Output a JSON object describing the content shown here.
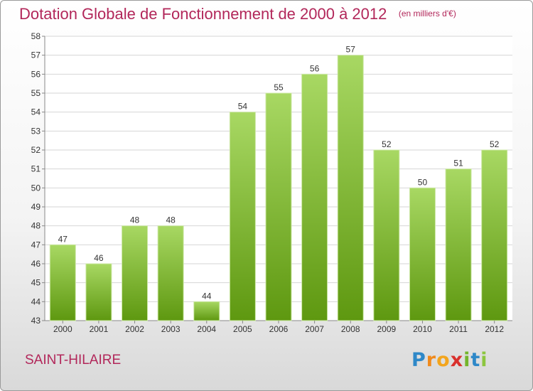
{
  "header": {
    "title": "Dotation Globale de Fonctionnement de 2000 à 2012",
    "subtitle": "(en milliers d'€)"
  },
  "commune": "SAINT-HILAIRE",
  "logo": {
    "letters": [
      "P",
      "r",
      "o",
      "x",
      "i",
      "t",
      "i"
    ]
  },
  "colors": {
    "title": "#b2275a",
    "bar_top": "#a8d863",
    "bar_bottom": "#5e9810",
    "grid": "#d6d6d6"
  },
  "chart_data": {
    "type": "bar",
    "title": "Dotation Globale de Fonctionnement de 2000 à 2012",
    "subtitle": "(en milliers d'€)",
    "categories": [
      "2000",
      "2001",
      "2002",
      "2003",
      "2004",
      "2005",
      "2006",
      "2007",
      "2008",
      "2009",
      "2010",
      "2011",
      "2012"
    ],
    "values": [
      47,
      46,
      48,
      48,
      44,
      54,
      55,
      56,
      57,
      52,
      50,
      51,
      52
    ],
    "ylim": [
      43,
      58
    ],
    "yticks": [
      43,
      44,
      45,
      46,
      47,
      48,
      49,
      50,
      51,
      52,
      53,
      54,
      55,
      56,
      57,
      58
    ],
    "grid": true,
    "data_labels": true
  }
}
